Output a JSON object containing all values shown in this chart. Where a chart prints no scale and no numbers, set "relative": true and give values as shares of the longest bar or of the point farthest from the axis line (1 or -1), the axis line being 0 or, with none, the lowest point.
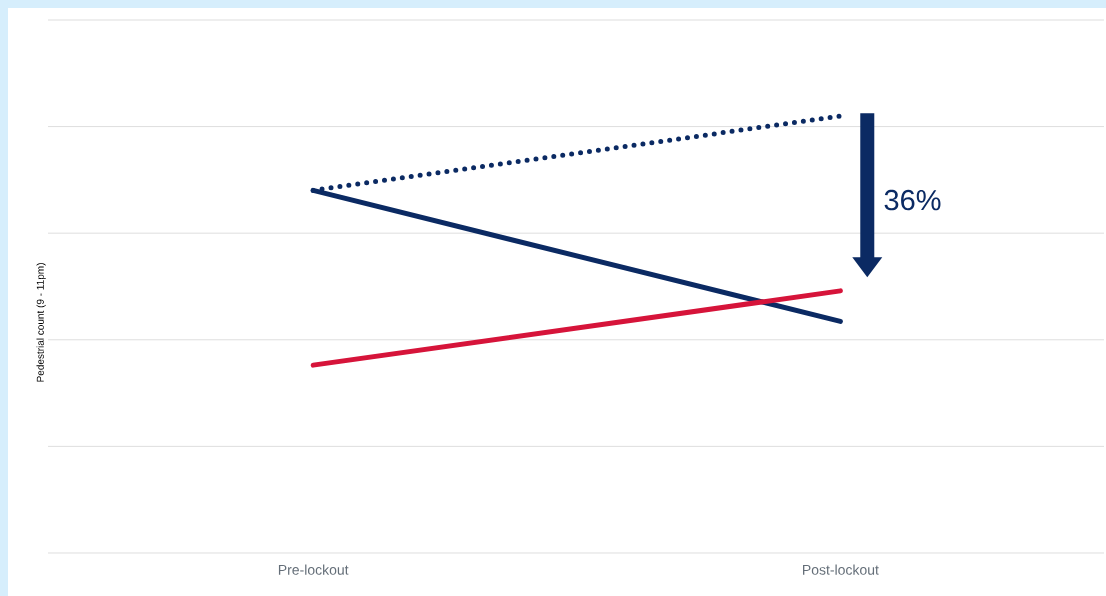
{
  "chart_data": {
    "type": "line",
    "relative": true,
    "ylabel": "Pedestrial count (9 - 11pm)",
    "categories": [
      "Pre-lockout",
      "Post-lockout"
    ],
    "grid": "y",
    "marker": "none",
    "series": [
      {
        "color": "#0b2a63",
        "values": [
          0.83,
          0.53
        ],
        "line_style": "solid"
      },
      {
        "color": "#0b2a63",
        "values": [
          0.83,
          1.0
        ],
        "line_style": "dotted"
      },
      {
        "color": "#d6143a",
        "values": [
          0.43,
          0.6
        ],
        "line_style": "solid"
      }
    ],
    "annotations": [
      "36%"
    ]
  }
}
